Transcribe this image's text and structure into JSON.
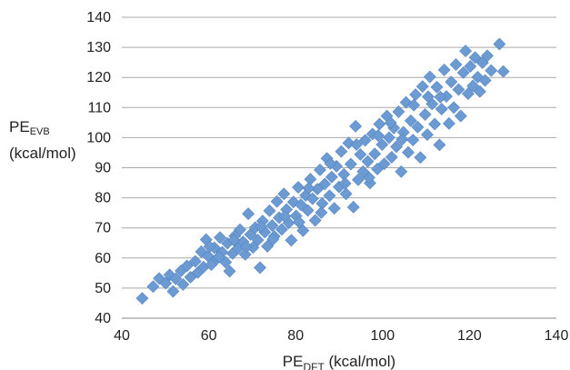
{
  "chart_data": {
    "type": "scatter",
    "title": "",
    "xlabel": {
      "main": "PE",
      "sub": "DFT",
      "unit": " (kcal/mol)"
    },
    "ylabel": {
      "main": "PE",
      "sub": "EVB",
      "unit": "(kcal/mol)"
    },
    "xlim": [
      40,
      140
    ],
    "ylim": [
      40,
      140
    ],
    "xticks": [
      "40",
      "60",
      "80",
      "100",
      "120",
      "140"
    ],
    "yticks": [
      "40",
      "50",
      "60",
      "70",
      "80",
      "90",
      "100",
      "110",
      "120",
      "130",
      "140"
    ],
    "grid": "horizontal",
    "marker": "diamond",
    "marker_color": "#6c9bd4",
    "series": [
      {
        "points": [
          [
            44.7,
            46.6
          ],
          [
            47.2,
            50.5
          ],
          [
            48.6,
            53.2
          ],
          [
            50.1,
            51.6
          ],
          [
            51.0,
            54.4
          ],
          [
            51.8,
            48.9
          ],
          [
            52.4,
            53.1
          ],
          [
            53.6,
            55.7
          ],
          [
            54.1,
            51.2
          ],
          [
            55.0,
            57.4
          ],
          [
            55.8,
            53.6
          ],
          [
            56.9,
            58.9
          ],
          [
            57.5,
            55.2
          ],
          [
            58.3,
            62.1
          ],
          [
            58.8,
            57.0
          ],
          [
            59.4,
            66.1
          ],
          [
            59.9,
            60.6
          ],
          [
            60.6,
            57.8
          ],
          [
            61.3,
            63.4
          ],
          [
            61.9,
            59.8
          ],
          [
            62.6,
            66.8
          ],
          [
            63.1,
            61.9
          ],
          [
            63.9,
            58.6
          ],
          [
            64.3,
            64.9
          ],
          [
            64.8,
            55.6
          ],
          [
            65.5,
            61.5
          ],
          [
            66.0,
            67.3
          ],
          [
            66.7,
            63.1
          ],
          [
            67.2,
            69.4
          ],
          [
            67.9,
            65.4
          ],
          [
            68.4,
            61.2
          ],
          [
            69.1,
            74.7
          ],
          [
            69.6,
            67.8
          ],
          [
            70.2,
            63.5
          ],
          [
            70.7,
            70.1
          ],
          [
            71.3,
            66.0
          ],
          [
            71.8,
            56.8
          ],
          [
            72.4,
            72.3
          ],
          [
            72.9,
            68.6
          ],
          [
            73.5,
            63.9
          ],
          [
            74.0,
            75.7
          ],
          [
            74.6,
            70.8
          ],
          [
            75.1,
            67.2
          ],
          [
            75.7,
            78.8
          ],
          [
            76.2,
            73.4
          ],
          [
            76.8,
            69.5
          ],
          [
            77.3,
            81.3
          ],
          [
            77.9,
            76.1
          ],
          [
            78.4,
            71.7
          ],
          [
            79.0,
            65.9
          ],
          [
            79.5,
            78.6
          ],
          [
            80.1,
            74.0
          ],
          [
            80.6,
            83.5
          ],
          [
            81.2,
            77.7
          ],
          [
            81.7,
            69.1
          ],
          [
            82.3,
            80.8
          ],
          [
            82.8,
            75.8
          ],
          [
            83.4,
            86.2
          ],
          [
            83.9,
            79.7
          ],
          [
            84.5,
            72.5
          ],
          [
            85.0,
            82.9
          ],
          [
            85.6,
            89.3
          ],
          [
            86.1,
            78.1
          ],
          [
            86.7,
            84.6
          ],
          [
            87.2,
            93.1
          ],
          [
            87.8,
            80.7
          ],
          [
            88.3,
            86.9
          ],
          [
            88.9,
            76.5
          ],
          [
            89.4,
            90.5
          ],
          [
            90.0,
            83.6
          ],
          [
            90.5,
            95.4
          ],
          [
            91.1,
            87.8
          ],
          [
            91.6,
            81.3
          ],
          [
            92.2,
            98.2
          ],
          [
            92.7,
            91.2
          ],
          [
            93.3,
            76.9
          ],
          [
            93.8,
            103.8
          ],
          [
            94.4,
            86.0
          ],
          [
            94.9,
            94.4
          ],
          [
            95.5,
            88.7
          ],
          [
            96.0,
            99.1
          ],
          [
            96.6,
            92.1
          ],
          [
            97.1,
            84.9
          ],
          [
            97.7,
            101.2
          ],
          [
            98.2,
            94.6
          ],
          [
            98.8,
            89.6
          ],
          [
            99.3,
            104.5
          ],
          [
            99.9,
            97.7
          ],
          [
            100.4,
            91.3
          ],
          [
            101.0,
            107.2
          ],
          [
            101.5,
            100.0
          ],
          [
            102.1,
            93.5
          ],
          [
            102.6,
            103.2
          ],
          [
            103.2,
            97.0
          ],
          [
            103.7,
            108.6
          ],
          [
            104.3,
            88.7
          ],
          [
            104.8,
            101.8
          ],
          [
            105.4,
            111.7
          ],
          [
            105.9,
            95.1
          ],
          [
            106.5,
            105.6
          ],
          [
            107.0,
            99.2
          ],
          [
            107.6,
            114.3
          ],
          [
            108.1,
            103.5
          ],
          [
            108.7,
            93.4
          ],
          [
            109.2,
            117.0
          ],
          [
            109.8,
            107.7
          ],
          [
            110.3,
            101.0
          ],
          [
            110.9,
            120.2
          ],
          [
            111.4,
            111.2
          ],
          [
            112.0,
            104.5
          ],
          [
            112.5,
            116.8
          ],
          [
            113.1,
            97.6
          ],
          [
            113.6,
            109.5
          ],
          [
            114.2,
            122.5
          ],
          [
            114.7,
            113.7
          ],
          [
            115.3,
            104.7
          ],
          [
            115.8,
            118.5
          ],
          [
            116.4,
            110.0
          ],
          [
            116.9,
            124.3
          ],
          [
            117.5,
            116.0
          ],
          [
            118.0,
            107.2
          ],
          [
            118.6,
            121.6
          ],
          [
            119.1,
            128.8
          ],
          [
            119.7,
            114.6
          ],
          [
            120.2,
            123.7
          ],
          [
            120.8,
            117.2
          ],
          [
            121.3,
            126.6
          ],
          [
            121.9,
            120.1
          ],
          [
            122.4,
            115.3
          ],
          [
            123.0,
            124.9
          ],
          [
            123.6,
            119.0
          ],
          [
            124.1,
            127.2
          ],
          [
            125.0,
            122.3
          ],
          [
            126.9,
            131.1
          ],
          [
            127.8,
            122.0
          ],
          [
            60.2,
            63.8
          ],
          [
            62.4,
            60.3
          ],
          [
            65.8,
            65.9
          ],
          [
            68.7,
            63.7
          ],
          [
            72.0,
            70.4
          ],
          [
            74.8,
            66.2
          ],
          [
            77.5,
            73.9
          ],
          [
            80.8,
            71.9
          ],
          [
            83.0,
            83.2
          ],
          [
            85.9,
            75.1
          ],
          [
            88.0,
            91.4
          ],
          [
            91.4,
            84.8
          ],
          [
            94.0,
            97.7
          ],
          [
            96.9,
            86.7
          ],
          [
            99.0,
            100.7
          ],
          [
            101.9,
            104.9
          ],
          [
            104.5,
            99.4
          ],
          [
            107.2,
            110.8
          ],
          [
            110.5,
            113.6
          ],
          [
            113.3,
            113.5
          ]
        ]
      }
    ]
  }
}
